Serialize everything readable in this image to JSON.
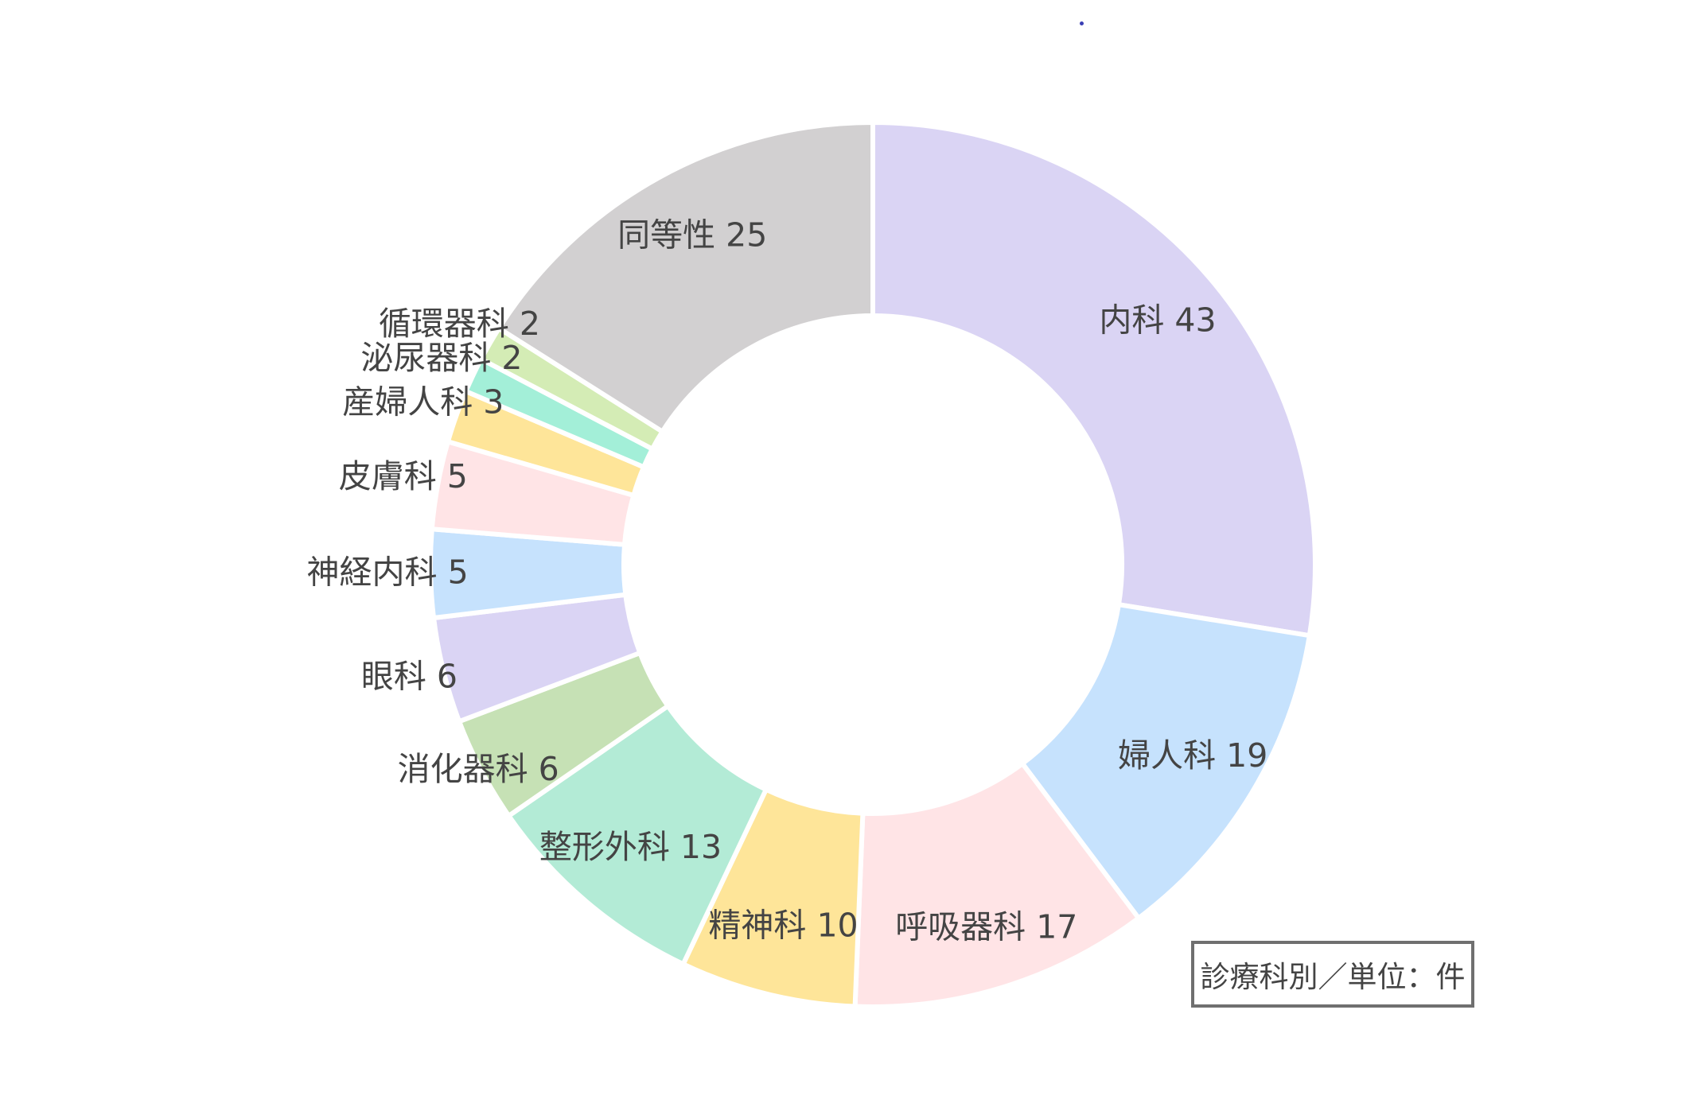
{
  "chart_data": {
    "type": "pie",
    "title": "",
    "unit_note": "診療科別／単位：件",
    "slices": [
      {
        "label": "内科",
        "value": 43,
        "color": "#dad4f4"
      },
      {
        "label": "婦人科",
        "value": 19,
        "color": "#c6e2fd"
      },
      {
        "label": "呼吸器科",
        "value": 17,
        "color": "#ffe4e6"
      },
      {
        "label": "精神科",
        "value": 10,
        "color": "#fee599"
      },
      {
        "label": "整形外科",
        "value": 13,
        "color": "#b3ebd6"
      },
      {
        "label": "消化器科",
        "value": 6,
        "color": "#c6e1b5"
      },
      {
        "label": "眼科",
        "value": 6,
        "color": "#dad4f4"
      },
      {
        "label": "神経内科",
        "value": 5,
        "color": "#c6e2fd"
      },
      {
        "label": "皮膚科",
        "value": 5,
        "color": "#ffe4e6"
      },
      {
        "label": "産婦人科",
        "value": 3,
        "color": "#fee599"
      },
      {
        "label": "泌尿器科",
        "value": 2,
        "color": "#a3efd8"
      },
      {
        "label": "循環器科",
        "value": 2,
        "color": "#d4ecb5"
      },
      {
        "label": "同等性",
        "value": 25,
        "color": "#d2d0d1"
      }
    ],
    "start": "12 o'clock",
    "direction": "clockwise"
  }
}
